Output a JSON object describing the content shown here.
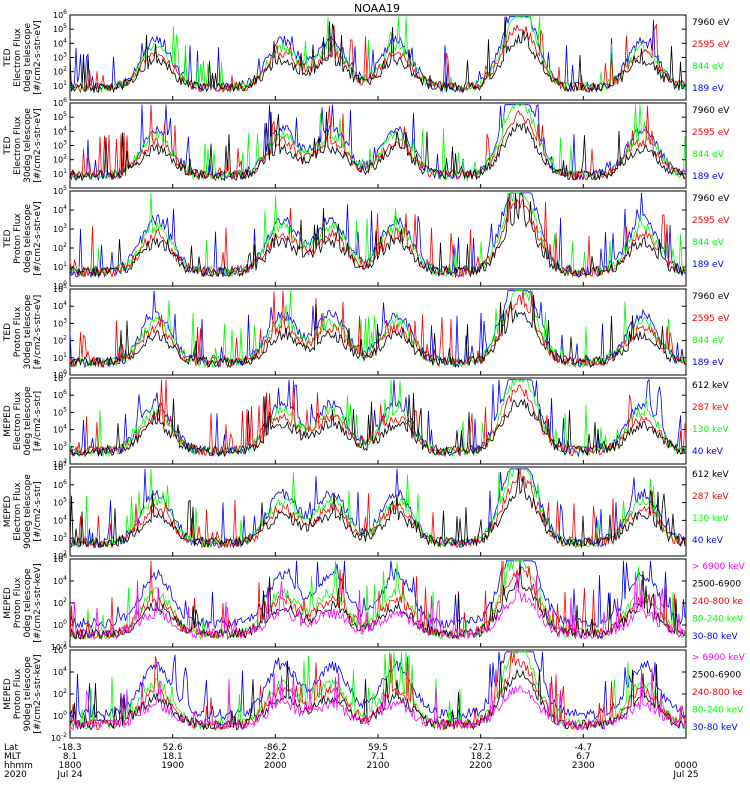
{
  "title": "NOAA19",
  "colors": {
    "black": "#000000",
    "red": "#ff0000",
    "green": "#00ff00",
    "blue": "#0000ff",
    "magenta": "#ff00ff"
  },
  "panels": [
    {
      "ylabel": [
        "TED",
        "Electron Flux",
        "0deg telescope",
        "[#/cm2-s-str-eV]"
      ],
      "ylim": [
        1,
        1000000
      ],
      "tick_exps": [
        1,
        2,
        3,
        4,
        5,
        6
      ],
      "legend": [
        {
          "text": "7960 eV",
          "color": "black"
        },
        {
          "text": "2595 eV",
          "color": "red"
        },
        {
          "text": "844 eV",
          "color": "green"
        },
        {
          "text": "189 eV",
          "color": "blue"
        }
      ]
    },
    {
      "ylabel": [
        "TED",
        "Electron Flux",
        "30deg telescope",
        "[#/cm2-s-str-eV]"
      ],
      "ylim": [
        1,
        1000000
      ],
      "tick_exps": [
        1,
        2,
        3,
        4,
        5,
        6
      ],
      "legend": [
        {
          "text": "7960 eV",
          "color": "black"
        },
        {
          "text": "2595 eV",
          "color": "red"
        },
        {
          "text": "844 eV",
          "color": "green"
        },
        {
          "text": "189 eV",
          "color": "blue"
        }
      ]
    },
    {
      "ylabel": [
        "TED",
        "Proton Flux",
        "0deg telescope",
        "[#/cm2-s-str-eV]"
      ],
      "ylim": [
        1,
        100000
      ],
      "tick_exps": [
        0,
        1,
        2,
        3,
        4,
        5
      ],
      "legend": [
        {
          "text": "7960 eV",
          "color": "black"
        },
        {
          "text": "2595 eV",
          "color": "red"
        },
        {
          "text": "844 eV",
          "color": "green"
        },
        {
          "text": "189 eV",
          "color": "blue"
        }
      ]
    },
    {
      "ylabel": [
        "TED",
        "Proton Flux",
        "30deg telescope",
        "[#/cm2-s-str-eV]"
      ],
      "ylim": [
        1,
        100000
      ],
      "tick_exps": [
        0,
        1,
        2,
        3,
        4,
        5
      ],
      "legend": [
        {
          "text": "7960 eV",
          "color": "black"
        },
        {
          "text": "2595 eV",
          "color": "red"
        },
        {
          "text": "844 eV",
          "color": "green"
        },
        {
          "text": "189 eV",
          "color": "blue"
        }
      ]
    },
    {
      "ylabel": [
        "MEPED",
        "Electron Flux",
        "0deg telescope",
        "[#/cm2-s-str]"
      ],
      "ylim": [
        100,
        10000000
      ],
      "tick_exps": [
        2,
        3,
        4,
        5,
        6,
        7
      ],
      "legend": [
        {
          "text": "612 keV",
          "color": "black"
        },
        {
          "text": "287 keV",
          "color": "red"
        },
        {
          "text": "130 keV",
          "color": "green"
        },
        {
          "text": "40 keV",
          "color": "blue"
        }
      ]
    },
    {
      "ylabel": [
        "MEPED",
        "Electron Flux",
        "90deg telescope",
        "[#/cm2-s-str]"
      ],
      "ylim": [
        100,
        10000000
      ],
      "tick_exps": [
        2,
        3,
        4,
        5,
        6,
        7
      ],
      "legend": [
        {
          "text": "612 keV",
          "color": "black"
        },
        {
          "text": "287 keV",
          "color": "red"
        },
        {
          "text": "130 keV",
          "color": "green"
        },
        {
          "text": "40 keV",
          "color": "blue"
        }
      ]
    },
    {
      "ylabel": [
        "MEPED",
        "Proton Flux",
        "0deg telescope",
        "[#/cm2-s-str-keV]"
      ],
      "ylim": [
        0.01,
        1000000
      ],
      "tick_exps": [
        -2,
        0,
        2,
        4,
        6
      ],
      "legend": [
        {
          "text": "> 6900 keV",
          "color": "magenta"
        },
        {
          "text": "2500-6900",
          "color": "black"
        },
        {
          "text": "240-800 ke",
          "color": "red"
        },
        {
          "text": "80-240 keV",
          "color": "green"
        },
        {
          "text": "30-80 keV",
          "color": "blue"
        }
      ]
    },
    {
      "ylabel": [
        "MEPED",
        "Proton Flux",
        "90deg telescope",
        "[#/cm2-s-str-keV]"
      ],
      "ylim": [
        0.01,
        1000000
      ],
      "tick_exps": [
        -2,
        0,
        2,
        4,
        6
      ],
      "legend": [
        {
          "text": "> 6900 keV",
          "color": "magenta"
        },
        {
          "text": "2500-6900",
          "color": "black"
        },
        {
          "text": "240-800 ke",
          "color": "red"
        },
        {
          "text": "80-240 keV",
          "color": "green"
        },
        {
          "text": "30-80 keV",
          "color": "blue"
        }
      ]
    }
  ],
  "xaxis": {
    "row_labels": [
      "Lat",
      "MLT",
      "hhmm",
      "2020"
    ],
    "ticks": [
      {
        "lat": "-18.3",
        "mlt": "8.1",
        "hhmm": "1800",
        "date": "Jul 24"
      },
      {
        "lat": "52.6",
        "mlt": "18.1",
        "hhmm": "1900",
        "date": ""
      },
      {
        "lat": "-86.2",
        "mlt": "22.0",
        "hhmm": "2000",
        "date": ""
      },
      {
        "lat": "59.5",
        "mlt": "7.1",
        "hhmm": "2100",
        "date": ""
      },
      {
        "lat": "-27.1",
        "mlt": "18.2",
        "hhmm": "2200",
        "date": ""
      },
      {
        "lat": "-4.7",
        "mlt": "6.7",
        "hhmm": "2300",
        "date": ""
      },
      {
        "lat": "",
        "mlt": "",
        "hhmm": "0000",
        "date": "Jul 25"
      }
    ]
  },
  "chart_data": {
    "type": "line",
    "title": "NOAA19",
    "x_range": [
      "2020-07-24 18:00",
      "2020-07-25 00:00"
    ],
    "y_scale": "log",
    "series": [
      {
        "name": "7960 eV"
      },
      {
        "name": "2595 eV"
      },
      {
        "name": "844 eV"
      },
      {
        "name": "189 eV"
      },
      {
        "name": "612 keV"
      },
      {
        "name": "287 keV"
      },
      {
        "name": "130 keV"
      },
      {
        "name": "40 keV"
      },
      {
        "name": "> 6900 keV"
      },
      {
        "name": "2500-6900"
      },
      {
        "name": "240-800 ke"
      },
      {
        "name": "80-240 keV"
      },
      {
        "name": "30-80 keV"
      }
    ]
  }
}
